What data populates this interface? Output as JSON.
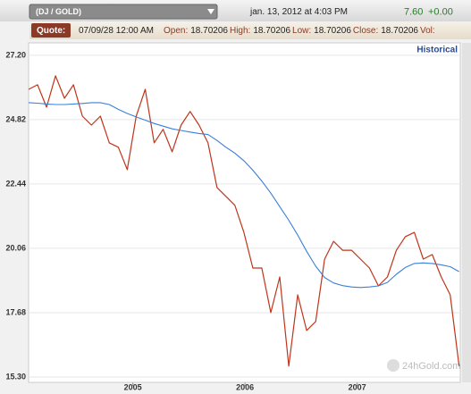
{
  "header": {
    "symbol": "(DJ / GOLD)",
    "datetime": "jan. 13, 2012 at 4:03 PM",
    "price": "7.60",
    "change": "+0.00"
  },
  "quote": {
    "label": "Quote:",
    "date": "07/09/28 12:00 AM",
    "fields": [
      {
        "label": "Open:",
        "value": "18.70206"
      },
      {
        "label": "High:",
        "value": "18.70206"
      },
      {
        "label": "Low:",
        "value": "18.70206"
      },
      {
        "label": "Close:",
        "value": "18.70206"
      },
      {
        "label": "Vol:"
      }
    ]
  },
  "watermark": "24hGold.com",
  "chart_data": {
    "type": "line",
    "historical_label": "Historical",
    "x": [
      2004.07,
      2004.15,
      2004.23,
      2004.31,
      2004.39,
      2004.47,
      2004.55,
      2004.63,
      2004.71,
      2004.79,
      2004.87,
      2004.95,
      2005.03,
      2005.11,
      2005.19,
      2005.27,
      2005.35,
      2005.43,
      2005.51,
      2005.59,
      2005.67,
      2005.75,
      2005.83,
      2005.91,
      2005.99,
      2006.07,
      2006.15,
      2006.23,
      2006.31,
      2006.39,
      2006.47,
      2006.55,
      2006.63,
      2006.71,
      2006.79,
      2006.87,
      2006.95,
      2007.03,
      2007.11,
      2007.19,
      2007.27,
      2007.35,
      2007.43,
      2007.51,
      2007.59,
      2007.67,
      2007.75,
      2007.83,
      2007.91
    ],
    "series": [
      {
        "color": "#c0341a",
        "values": [
          25.94,
          26.11,
          25.28,
          26.44,
          25.61,
          26.11,
          24.95,
          24.62,
          24.95,
          23.96,
          23.8,
          22.97,
          24.95,
          25.94,
          23.96,
          24.46,
          23.63,
          24.62,
          25.12,
          24.62,
          23.96,
          22.31,
          21.98,
          21.65,
          20.65,
          19.33,
          19.33,
          17.68,
          19.0,
          15.7,
          18.34,
          17.02,
          17.35,
          19.66,
          20.32,
          19.99,
          19.99,
          19.66,
          19.33,
          18.67,
          19.0,
          19.99,
          20.49,
          20.65,
          19.66,
          19.83,
          19.0,
          18.34,
          15.7
        ]
      },
      {
        "color": "#3a7fd8",
        "values": [
          25.45,
          25.43,
          25.4,
          25.38,
          25.38,
          25.4,
          25.42,
          25.45,
          25.45,
          25.38,
          25.2,
          25.05,
          24.92,
          24.8,
          24.68,
          24.58,
          24.48,
          24.42,
          24.36,
          24.31,
          24.27,
          24.05,
          23.8,
          23.58,
          23.3,
          22.95,
          22.55,
          22.1,
          21.6,
          21.1,
          20.55,
          19.95,
          19.4,
          18.98,
          18.78,
          18.68,
          18.63,
          18.61,
          18.63,
          18.67,
          18.8,
          19.1,
          19.35,
          19.5,
          19.52,
          19.5,
          19.45,
          19.38,
          19.2
        ]
      }
    ],
    "xlim": [
      2004.07,
      2007.92
    ],
    "xticks": [
      2005,
      2006,
      2007
    ],
    "ylim": [
      15.1,
      27.66
    ],
    "yticks": [
      {
        "value": 15.3,
        "label": "15.30"
      },
      17.68,
      20.06,
      22.44,
      24.82,
      {
        "value": 27.2,
        "label": "27.20"
      }
    ],
    "grid": true
  }
}
